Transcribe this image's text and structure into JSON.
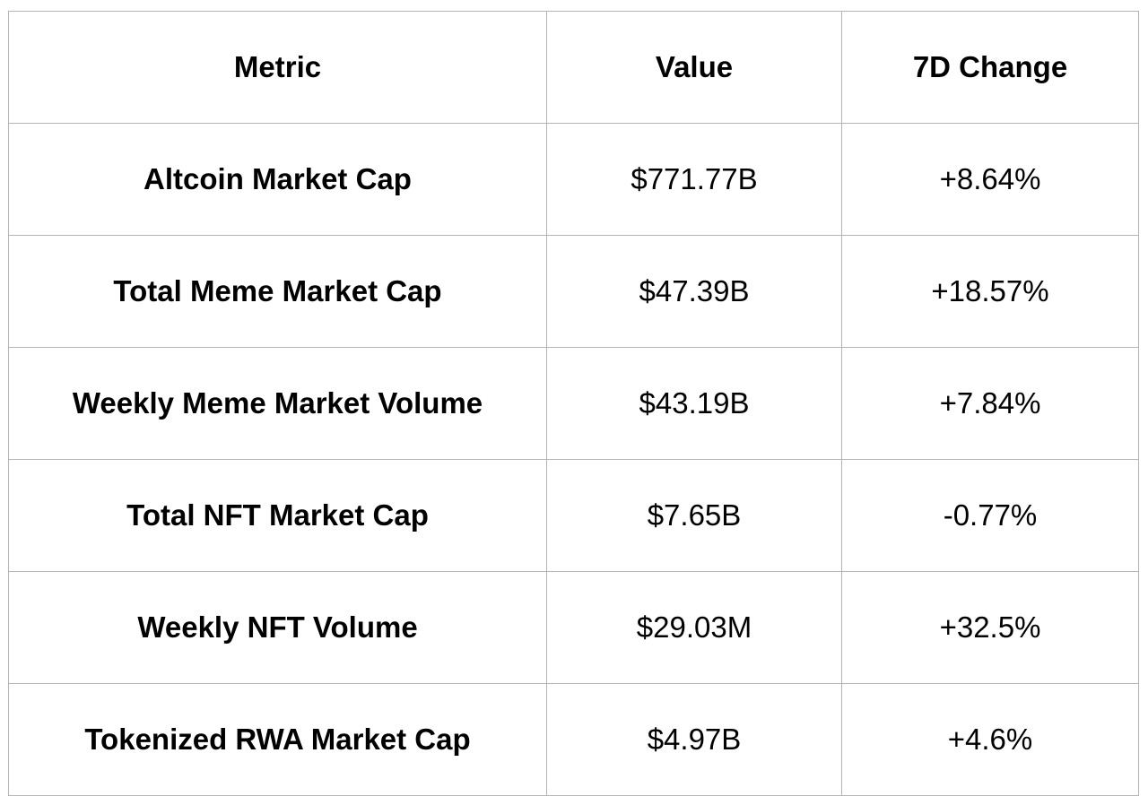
{
  "table": {
    "headers": [
      "Metric",
      "Value",
      "7D Change"
    ],
    "rows": [
      [
        "Altcoin Market Cap",
        "$771.77B",
        "+8.64%"
      ],
      [
        "Total Meme Market Cap",
        "$47.39B",
        "+18.57%"
      ],
      [
        "Weekly Meme Market Volume",
        "$43.19B",
        "+7.84%"
      ],
      [
        "Total NFT Market Cap",
        "$7.65B",
        "-0.77%"
      ],
      [
        "Weekly NFT Volume",
        "$29.03M",
        "+32.5%"
      ],
      [
        "Tokenized RWA Market Cap",
        "$4.97B",
        "+4.6%"
      ]
    ]
  }
}
